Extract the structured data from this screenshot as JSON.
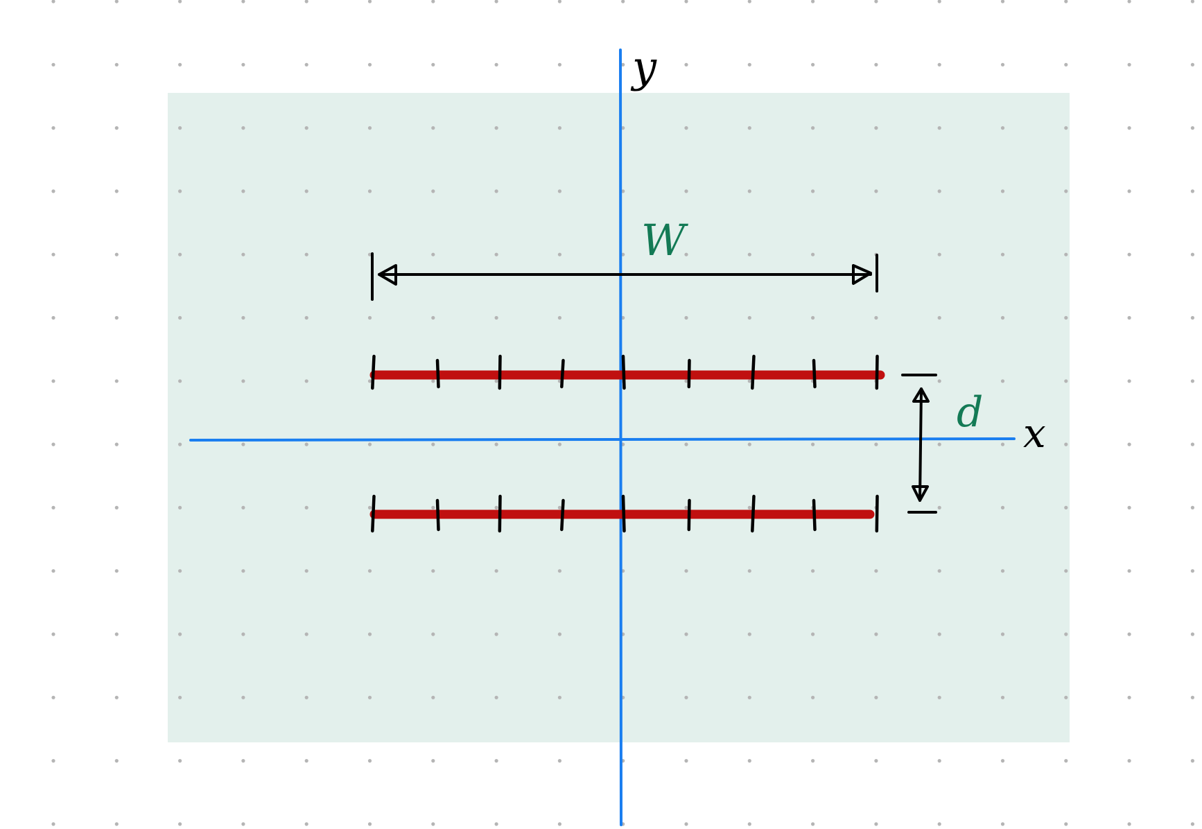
{
  "labels": {
    "y_axis": "y",
    "x_axis": "x",
    "width": "W",
    "separation": "d"
  },
  "plates": {
    "count": 2,
    "ticks_per_plate": 9
  },
  "colors": {
    "background": "#ffffff",
    "grid_dot": "#b5b5b5",
    "panel": "#e3f0ec",
    "axis": "#1a7ef0",
    "plate": "#c01010",
    "ink": "#000000",
    "label_green": "#137a55"
  }
}
